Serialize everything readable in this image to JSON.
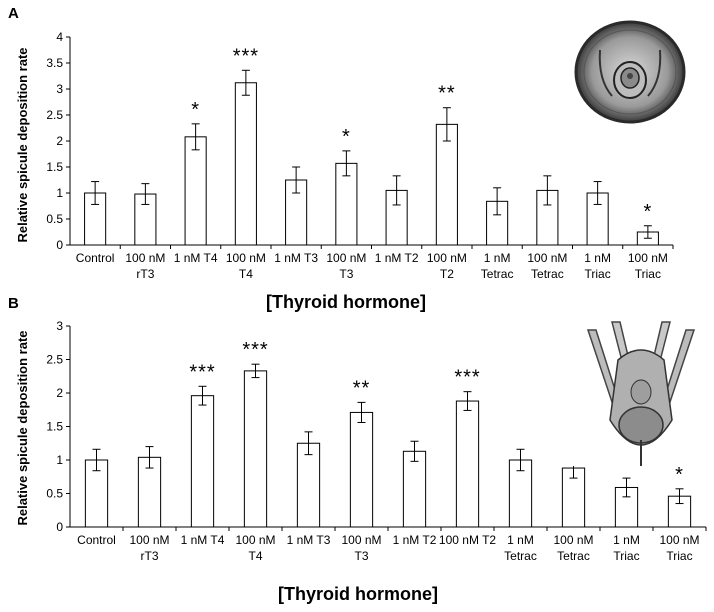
{
  "chart_data": [
    {
      "type": "bar",
      "panel": "A",
      "ylabel": "Relative spicule deposition rate",
      "xlabel": "[Thyroid hormone]",
      "ylim": [
        0,
        4
      ],
      "yticks": [
        "0",
        "0.5",
        "1",
        "1.5",
        "2",
        "2.5",
        "3",
        "3.5",
        "4"
      ],
      "categories": [
        [
          "Control"
        ],
        [
          "100 nM",
          "rT3"
        ],
        [
          "1 nM T4"
        ],
        [
          "100 nM",
          "T4"
        ],
        [
          "1 nM T3"
        ],
        [
          "100 nM",
          "T3"
        ],
        [
          "1 nM T2"
        ],
        [
          "100 nM",
          "T2"
        ],
        [
          "1 nM",
          "Tetrac"
        ],
        [
          "100 nM",
          "Tetrac"
        ],
        [
          "1 nM",
          "Triac"
        ],
        [
          "100 nM",
          "Triac"
        ]
      ],
      "values": [
        1.0,
        0.98,
        2.08,
        3.12,
        1.25,
        1.57,
        1.05,
        2.32,
        0.84,
        1.05,
        1.0,
        0.25
      ],
      "errors": [
        0.22,
        0.2,
        0.25,
        0.24,
        0.25,
        0.24,
        0.28,
        0.32,
        0.26,
        0.28,
        0.22,
        0.12
      ],
      "significance": [
        "",
        "",
        "*",
        "***",
        "",
        "*",
        "",
        "**",
        "",
        "",
        "",
        "*"
      ],
      "grid": false,
      "inset": "rounded larva"
    },
    {
      "type": "bar",
      "panel": "B",
      "ylabel": "Relative spicule deposition rate",
      "xlabel": "[Thyroid hormone]",
      "ylim": [
        0,
        3
      ],
      "yticks": [
        "0",
        "0.5",
        "1",
        "1.5",
        "2",
        "2.5",
        "3"
      ],
      "categories": [
        [
          "Control"
        ],
        [
          "100 nM",
          "rT3"
        ],
        [
          "1 nM T4"
        ],
        [
          "100 nM",
          "T4"
        ],
        [
          "1 nM T3"
        ],
        [
          "100 nM",
          "T3"
        ],
        [
          "1 nM T2"
        ],
        [
          "100 nM T2"
        ],
        [
          "1 nM",
          "Tetrac"
        ],
        [
          "100 nM",
          "Tetrac"
        ],
        [
          "1 nM",
          "Triac"
        ],
        [
          "100 nM",
          "Triac"
        ]
      ],
      "values": [
        1.0,
        1.04,
        1.96,
        2.33,
        1.25,
        1.71,
        1.13,
        1.88,
        1.0,
        0.88,
        0.59,
        0.46
      ],
      "errors": [
        0.16,
        0.16,
        0.14,
        0.1,
        0.17,
        0.15,
        0.15,
        0.14,
        0.16,
        0.15,
        0.14,
        0.11
      ],
      "significance": [
        "",
        "",
        "***",
        "***",
        "",
        "**",
        "",
        "***",
        "",
        "",
        "",
        "*"
      ],
      "grid": false,
      "inset": "pluteus larva"
    }
  ],
  "figure": {
    "panel_A_letter": "A",
    "panel_B_letter": "B"
  }
}
